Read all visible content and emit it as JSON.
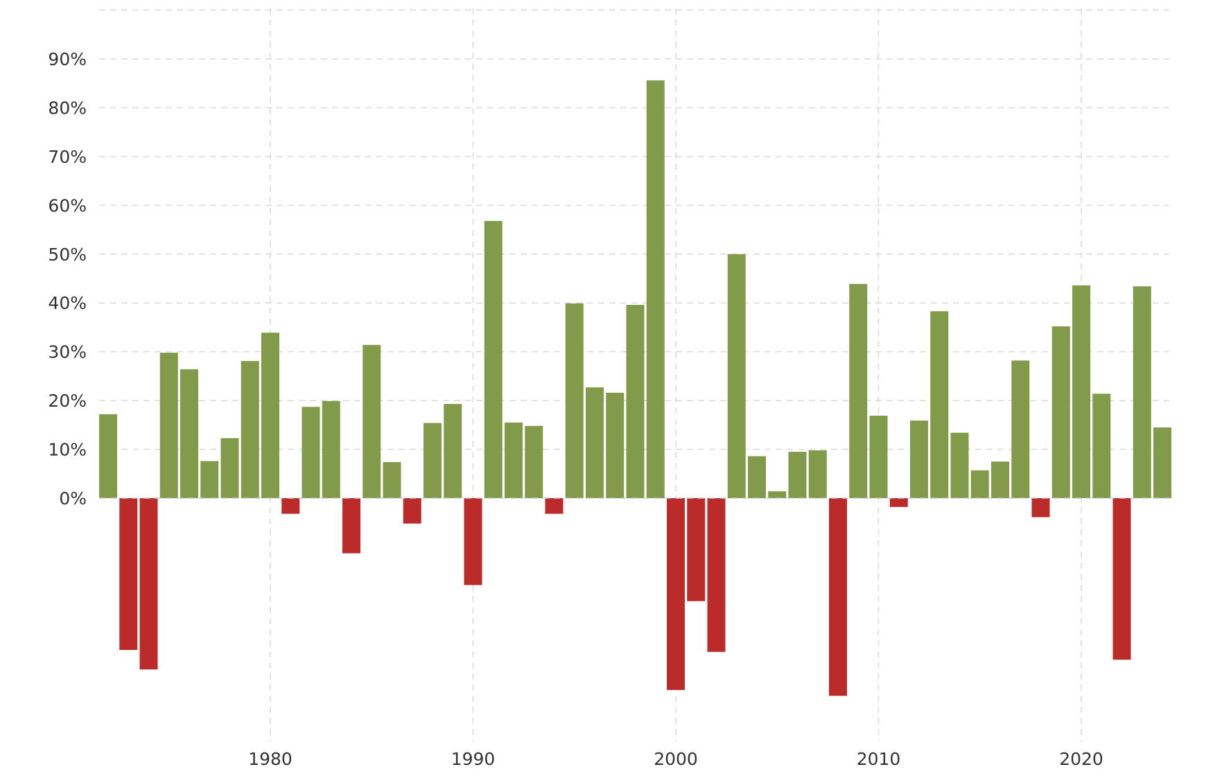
{
  "chart_data": {
    "type": "bar",
    "title": "",
    "xlabel": "",
    "ylabel": "",
    "x": [
      1972,
      1973,
      1974,
      1975,
      1976,
      1977,
      1978,
      1979,
      1980,
      1981,
      1982,
      1983,
      1984,
      1985,
      1986,
      1987,
      1988,
      1989,
      1990,
      1991,
      1992,
      1993,
      1994,
      1995,
      1996,
      1997,
      1998,
      1999,
      2000,
      2001,
      2002,
      2003,
      2004,
      2005,
      2006,
      2007,
      2008,
      2009,
      2010,
      2011,
      2012,
      2013,
      2014,
      2015,
      2016,
      2017,
      2018,
      2019,
      2020,
      2021,
      2022,
      2023,
      2024
    ],
    "values": [
      17.2,
      -31.1,
      -35.1,
      29.8,
      26.4,
      7.6,
      12.3,
      28.1,
      33.9,
      -3.2,
      18.7,
      19.9,
      -11.3,
      31.4,
      7.4,
      -5.2,
      15.4,
      19.3,
      -17.8,
      56.8,
      15.5,
      14.8,
      -3.2,
      39.9,
      22.7,
      21.6,
      39.6,
      85.6,
      -39.3,
      -21.1,
      -31.5,
      50.0,
      8.6,
      1.4,
      9.5,
      9.8,
      -40.5,
      43.9,
      16.9,
      -1.8,
      15.9,
      38.3,
      13.4,
      5.7,
      7.5,
      28.2,
      -3.9,
      35.2,
      43.6,
      21.4,
      -33.1,
      43.4,
      14.5
    ],
    "ylim": [
      -50,
      100
    ],
    "xlim": [
      1971.5,
      2024.5
    ],
    "y_ticks": [
      0,
      10,
      20,
      30,
      40,
      50,
      60,
      70,
      80,
      90
    ],
    "y_tick_labels": [
      "0%",
      "10%",
      "20%",
      "30%",
      "40%",
      "50%",
      "60%",
      "70%",
      "80%",
      "90%"
    ],
    "x_ticks": [
      1980,
      1990,
      2000,
      2010,
      2020
    ],
    "x_tick_labels": [
      "1980",
      "1990",
      "2000",
      "2010",
      "2020"
    ],
    "grid": true,
    "colors": {
      "positive": "#819b4a",
      "negative": "#bb2b2a",
      "grid": "#d9d9d9",
      "text": "#333333"
    }
  }
}
